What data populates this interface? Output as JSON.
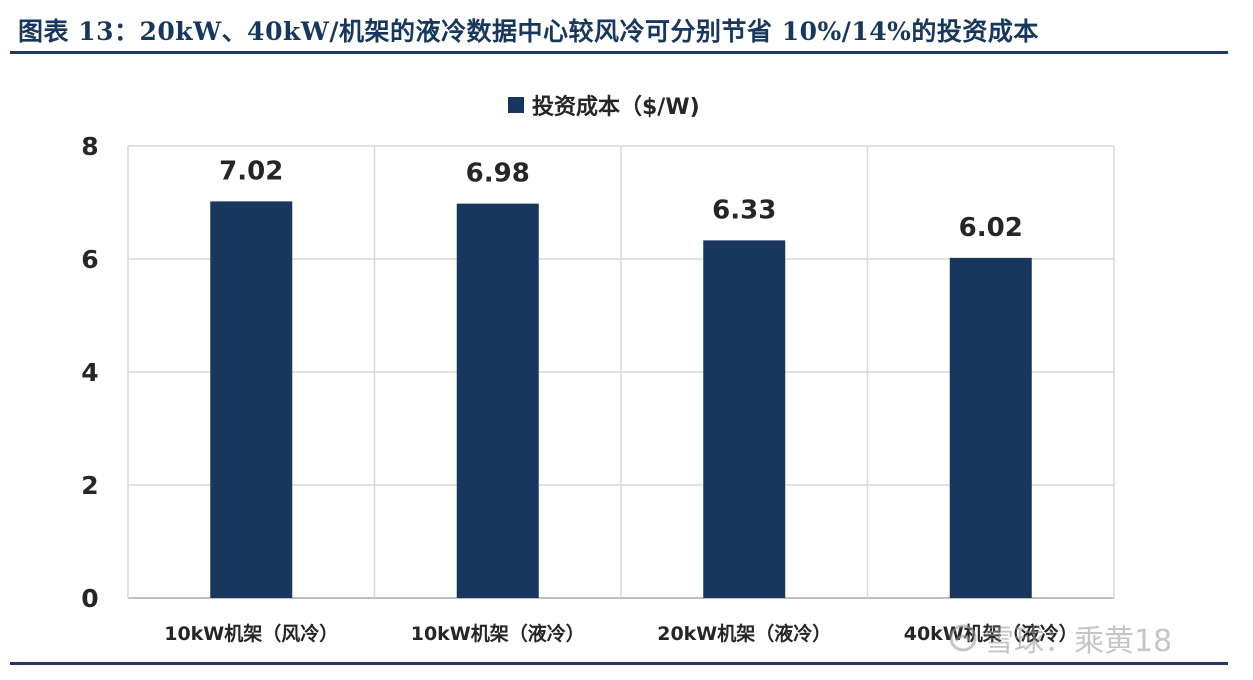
{
  "figure": {
    "title": "图表 13：20kW、40kW/机架的液冷数据中心较风冷可分别节省 10%/14%的投资成本",
    "watermark": "雪球：乘黄18"
  },
  "colors": {
    "bar": "#17375e",
    "title": "#17375e",
    "rule": "#1f3864",
    "grid": "#d9d9d9",
    "axis": "#bfbfbf",
    "text": "#262626"
  },
  "chart_data": {
    "type": "bar",
    "categories": [
      "10kW机架（风冷）",
      "10kW机架（液冷）",
      "20kW机架（液冷）",
      "40kW机架（液冷）"
    ],
    "series": [
      {
        "name": "投资成本（$/W)",
        "values": [
          7.02,
          6.98,
          6.33,
          6.02
        ]
      }
    ],
    "data_labels": [
      "7.02",
      "6.98",
      "6.33",
      "6.02"
    ],
    "yticks": [
      "0",
      "2",
      "4",
      "6",
      "8"
    ],
    "ylim": [
      0,
      8
    ],
    "grid": true,
    "legend": "top-center"
  }
}
